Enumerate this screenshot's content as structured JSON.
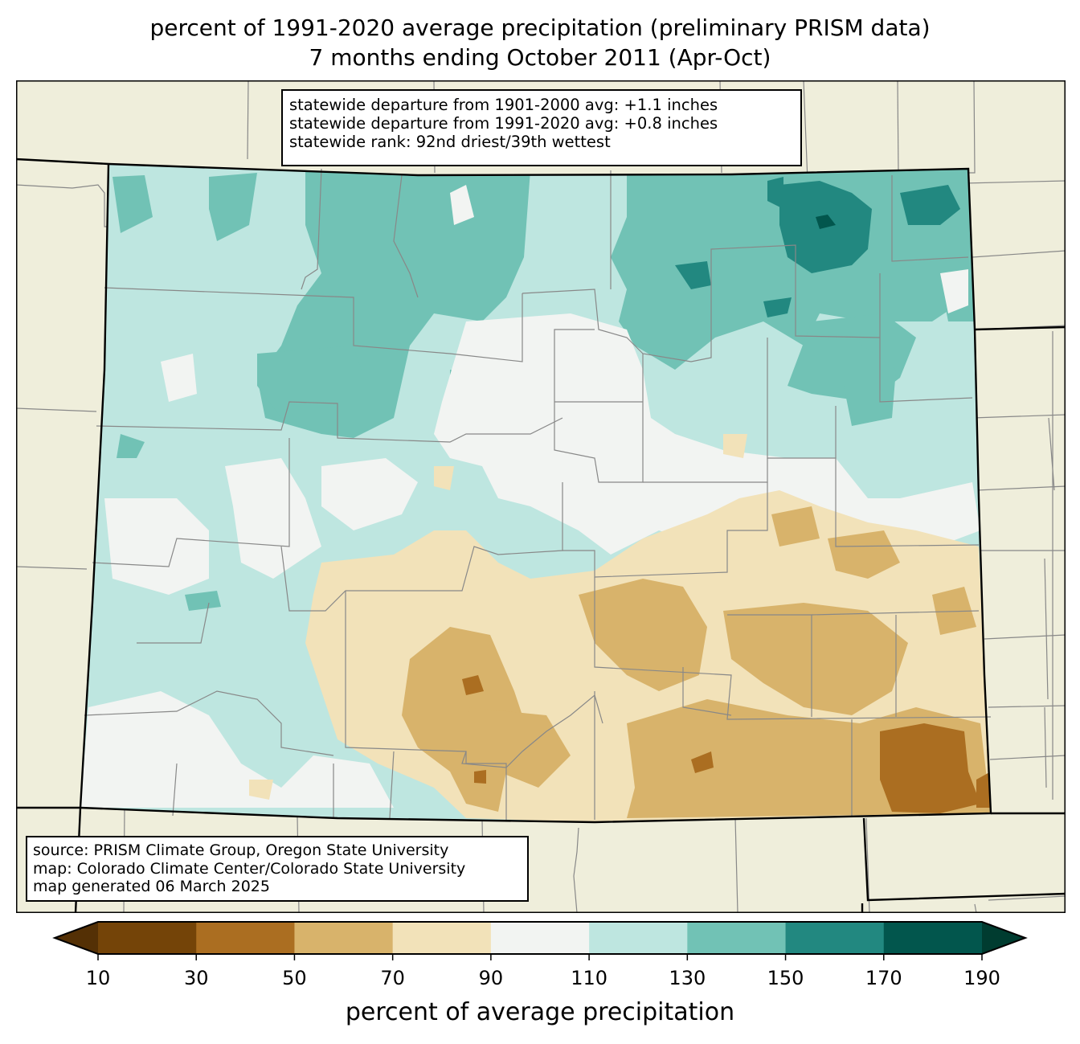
{
  "title": {
    "line1": "percent of 1991-2020 average precipitation (preliminary PRISM data)",
    "line2": "7 months ending October 2011 (Apr-Oct)"
  },
  "stats_box": {
    "line1": "statewide departure from 1901-2000 avg: +1.1 inches",
    "line2": "statewide departure from 1991-2020 avg: +0.8 inches",
    "line3": "statewide rank: 92nd driest/39th wettest"
  },
  "credits_box": {
    "line1": "source: PRISM Climate Group, Oregon State University",
    "line2": "map: Colorado Climate Center/Colorado State University",
    "line3": "map generated 06 March 2025"
  },
  "colorbar": {
    "label": "percent of average precipitation",
    "ticks": [
      "10",
      "30",
      "50",
      "70",
      "90",
      "110",
      "130",
      "150",
      "170",
      "190"
    ],
    "under_color": "#543005",
    "over_color": "#003c30",
    "bins": [
      {
        "from": 10,
        "to": 30,
        "color": "#744408"
      },
      {
        "from": 30,
        "to": 50,
        "color": "#ab6e21"
      },
      {
        "from": 50,
        "to": 70,
        "color": "#d8b36b"
      },
      {
        "from": 70,
        "to": 90,
        "color": "#f2e2b9"
      },
      {
        "from": 90,
        "to": 110,
        "color": "#f2f4f2"
      },
      {
        "from": 110,
        "to": 130,
        "color": "#bee6e0"
      },
      {
        "from": 130,
        "to": 150,
        "color": "#71c2b5"
      },
      {
        "from": 150,
        "to": 170,
        "color": "#228880"
      },
      {
        "from": 170,
        "to": 190,
        "color": "#02564d"
      }
    ]
  },
  "map": {
    "land_color": "#efeedb",
    "county_line_color": "#888888",
    "state_line_color": "#000000"
  }
}
